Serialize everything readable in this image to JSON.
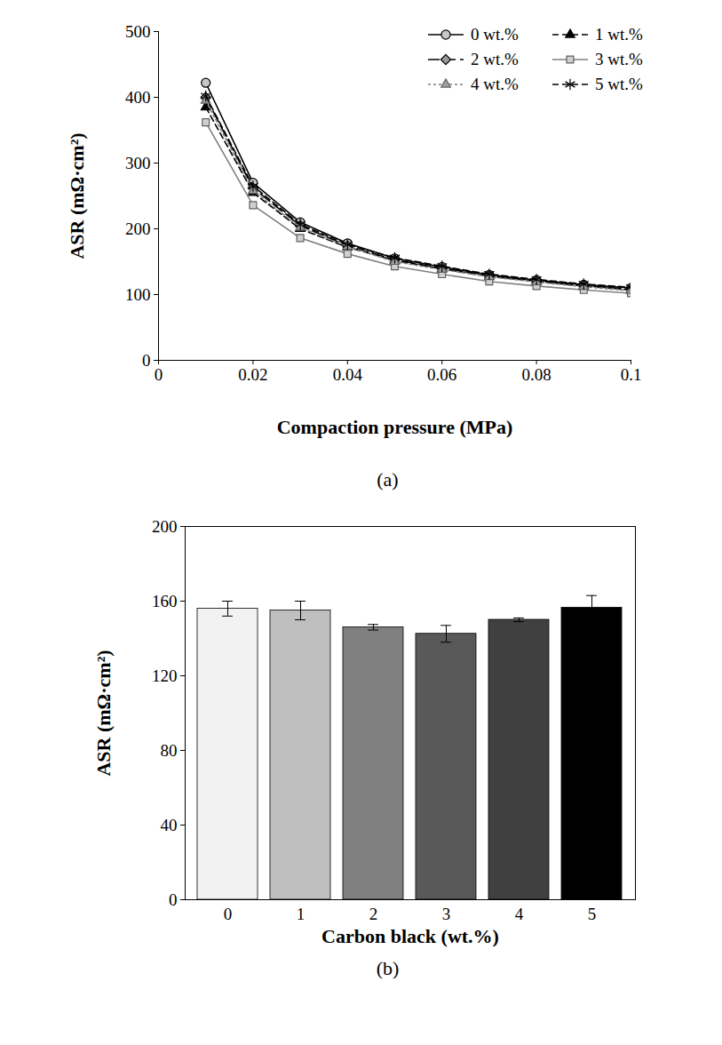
{
  "chart_data": [
    {
      "type": "line",
      "caption": "(a)",
      "x_label": "Compaction pressure (MPa)",
      "y_label": "ASR (mΩ·cm²)",
      "x": [
        0.01,
        0.02,
        0.03,
        0.04,
        0.05,
        0.06,
        0.07,
        0.08,
        0.09,
        0.1
      ],
      "xlim": [
        0,
        0.1
      ],
      "xticks": [
        0,
        0.02,
        0.04,
        0.06,
        0.08,
        0.1
      ],
      "ylim": [
        0,
        500
      ],
      "yticks": [
        0,
        100,
        200,
        300,
        400,
        500
      ],
      "legend": "top-right",
      "series": [
        {
          "name": "0 wt.%",
          "color": "#000000",
          "marker": "circle",
          "line_style": "solid",
          "values": [
            422,
            270,
            210,
            178,
            155,
            142,
            130,
            122,
            115,
            110
          ]
        },
        {
          "name": "1 wt.%",
          "color": "#000000",
          "marker": "triangle",
          "line_style": "dashed",
          "values": [
            385,
            255,
            200,
            172,
            152,
            139,
            128,
            120,
            113,
            107
          ]
        },
        {
          "name": "2 wt.%",
          "color": "#000000",
          "marker": "diamond",
          "line_style": "longdash",
          "values": [
            400,
            262,
            205,
            174,
            153,
            140,
            129,
            121,
            114,
            108
          ]
        },
        {
          "name": "3 wt.%",
          "color": "#808080",
          "marker": "square",
          "line_style": "solid",
          "values": [
            362,
            236,
            186,
            162,
            143,
            131,
            120,
            113,
            107,
            102
          ]
        },
        {
          "name": "4 wt.%",
          "color": "#808080",
          "marker": "triangle",
          "line_style": "dotted",
          "values": [
            395,
            258,
            202,
            173,
            150,
            138,
            127,
            119,
            112,
            106
          ]
        },
        {
          "name": "5 wt.%",
          "color": "#000000",
          "marker": "asterisk",
          "line_style": "dashed",
          "values": [
            402,
            265,
            207,
            176,
            156,
            143,
            131,
            123,
            116,
            111
          ]
        }
      ]
    },
    {
      "type": "bar",
      "caption": "(b)",
      "x_label": "Carbon black (wt.%)",
      "y_label": "ASR (mΩ·cm²)",
      "categories": [
        "0",
        "1",
        "2",
        "3",
        "4",
        "5"
      ],
      "values": [
        156,
        155,
        146,
        142.5,
        150,
        156.5
      ],
      "errors": [
        4,
        5,
        1.5,
        4.5,
        1,
        6.5
      ],
      "colors": [
        "#f2f2f2",
        "#bfbfbf",
        "#808080",
        "#595959",
        "#404040",
        "#000000"
      ],
      "ylim": [
        0,
        200
      ],
      "yticks": [
        0,
        40,
        80,
        120,
        160,
        200
      ]
    }
  ]
}
